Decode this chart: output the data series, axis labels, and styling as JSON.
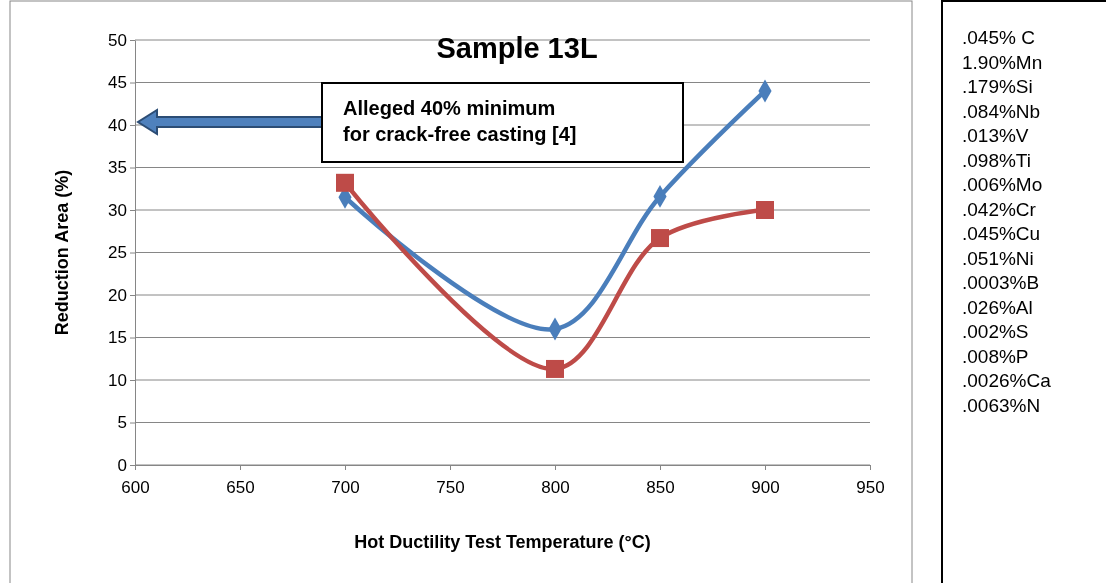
{
  "chart_data": {
    "type": "line",
    "title": "Sample 13L",
    "xlabel": "Hot Ductility Test Temperature (°C)",
    "ylabel": "Reduction Area (%)",
    "x": [
      700,
      800,
      850,
      900
    ],
    "series": [
      {
        "color": "#4a7ebb",
        "marker": "diamond",
        "values": [
          31.5,
          16,
          31.6,
          44
        ]
      },
      {
        "color": "#be4b48",
        "marker": "square",
        "values": [
          33.2,
          11.3,
          26.7,
          30
        ]
      }
    ],
    "xlim": [
      600,
      950
    ],
    "xticks": [
      600,
      650,
      700,
      750,
      800,
      850,
      900,
      950
    ],
    "ylim": [
      0,
      50
    ],
    "yticks": [
      0,
      5,
      10,
      15,
      20,
      25,
      30,
      35,
      40,
      45,
      50
    ],
    "grid": "y",
    "annotations": [
      "Alleged 40% minimum\nfor crack-free casting [4]",
      ".045% C",
      "1.90%Mn",
      ".179%Si",
      ".084%Nb",
      ".013%V",
      ".098%Ti",
      ".006%Mo",
      ".042%Cr",
      ".045%Cu",
      ".051%Ni",
      ".0003%B",
      ".026%Al",
      ".002%S",
      ".008%P",
      ".0026%Ca",
      ".0063%N"
    ]
  }
}
